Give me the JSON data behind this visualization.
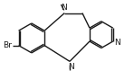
{
  "background": "#ffffff",
  "line_color": "#1a1a1a",
  "line_width": 1.0,
  "font_size": 6.5,
  "xlim": [
    -2.0,
    2.6
  ],
  "ylim": [
    -1.4,
    1.3
  ]
}
